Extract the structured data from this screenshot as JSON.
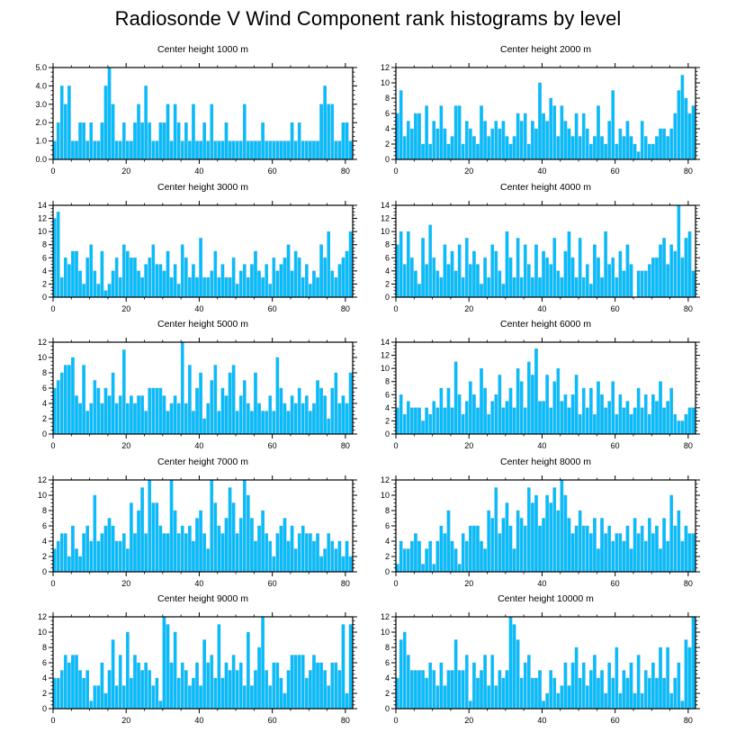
{
  "title": "Radiosonde V Wind Component rank histograms by level",
  "colors": {
    "bar": "#00BFFF",
    "bar_edge": "#4FA8D8",
    "axis": "#000000"
  },
  "chart_data": [
    {
      "type": "bar",
      "title": "Center height 1000 m",
      "xlim": [
        0,
        82
      ],
      "ylim": [
        0,
        5
      ],
      "xticks": [
        0,
        20,
        40,
        60,
        80
      ],
      "yticks": [
        0,
        1,
        2,
        3,
        4,
        5
      ],
      "ytick_labels": [
        "0.0",
        "1.0",
        "2.0",
        "3.0",
        "4.0",
        "5.0"
      ],
      "values": [
        1,
        2,
        4,
        3,
        4,
        1,
        1,
        2,
        2,
        1,
        2,
        1,
        1,
        2,
        4,
        5,
        3,
        1,
        1,
        2,
        1,
        1,
        2,
        3,
        2,
        4,
        2,
        1,
        1,
        2,
        2,
        3,
        1,
        3,
        2,
        1,
        2,
        1,
        3,
        1,
        1,
        2,
        1,
        3,
        1,
        1,
        1,
        2,
        1,
        1,
        1,
        1,
        3,
        1,
        1,
        1,
        1,
        2,
        1,
        1,
        1,
        1,
        1,
        1,
        1,
        2,
        1,
        2,
        1,
        1,
        1,
        1,
        1,
        3,
        4,
        3,
        3,
        1,
        1,
        2,
        2,
        1
      ]
    },
    {
      "type": "bar",
      "title": "Center height 2000 m",
      "xlim": [
        0,
        82
      ],
      "ylim": [
        0,
        12
      ],
      "xticks": [
        0,
        20,
        40,
        60,
        80
      ],
      "yticks": [
        0,
        2,
        4,
        6,
        8,
        10,
        12
      ],
      "ytick_labels": [
        "0",
        "2",
        "4",
        "6",
        "8",
        "10",
        "12"
      ],
      "values": [
        6,
        9,
        3,
        5,
        4,
        6,
        6,
        2,
        7,
        2,
        5,
        4,
        7,
        4,
        2,
        3,
        7,
        7,
        2,
        5,
        4,
        3,
        2,
        7,
        5,
        3,
        4,
        5,
        4,
        5,
        3,
        2,
        3,
        6,
        5,
        6,
        2,
        5,
        4,
        10,
        6,
        5,
        8,
        7,
        3,
        7,
        5,
        4,
        3,
        6,
        3,
        6,
        4,
        2,
        3,
        7,
        3,
        2,
        5,
        9,
        2,
        4,
        3,
        5,
        3,
        2,
        1,
        5,
        3,
        2,
        2,
        3,
        4,
        4,
        3,
        4,
        6,
        9,
        11,
        8,
        6,
        7
      ]
    },
    {
      "type": "bar",
      "title": "Center height 3000 m",
      "xlim": [
        0,
        82
      ],
      "ylim": [
        0,
        14
      ],
      "xticks": [
        0,
        20,
        40,
        60,
        80
      ],
      "yticks": [
        0,
        2,
        4,
        6,
        8,
        10,
        12,
        14
      ],
      "ytick_labels": [
        "0",
        "2",
        "4",
        "6",
        "8",
        "10",
        "12",
        "14"
      ],
      "values": [
        12,
        13,
        3,
        6,
        5,
        7,
        7,
        4,
        2,
        6,
        8,
        4,
        2,
        7,
        1,
        2,
        4,
        6,
        3,
        8,
        7,
        6,
        6,
        4,
        3,
        5,
        6,
        8,
        5,
        5,
        4,
        7,
        3,
        5,
        2,
        8,
        6,
        3,
        5,
        3,
        9,
        3,
        3,
        4,
        7,
        3,
        5,
        3,
        3,
        6,
        2,
        4,
        5,
        3,
        5,
        7,
        4,
        3,
        5,
        2,
        6,
        4,
        5,
        6,
        8,
        4,
        7,
        6,
        3,
        5,
        2,
        4,
        3,
        8,
        6,
        10,
        4,
        3,
        5,
        6,
        7,
        10
      ]
    },
    {
      "type": "bar",
      "title": "Center height 4000 m",
      "xlim": [
        0,
        82
      ],
      "ylim": [
        0,
        14
      ],
      "xticks": [
        0,
        20,
        40,
        60,
        80
      ],
      "yticks": [
        0,
        2,
        4,
        6,
        8,
        10,
        12,
        14
      ],
      "ytick_labels": [
        "0",
        "2",
        "4",
        "6",
        "8",
        "10",
        "12",
        "14"
      ],
      "values": [
        8,
        10,
        5,
        10,
        6,
        4,
        2,
        9,
        5,
        11,
        6,
        4,
        3,
        8,
        5,
        7,
        4,
        8,
        3,
        9,
        5,
        7,
        5,
        2,
        6,
        3,
        8,
        7,
        4,
        2,
        10,
        6,
        3,
        9,
        3,
        8,
        5,
        3,
        8,
        3,
        7,
        6,
        5,
        9,
        4,
        3,
        7,
        10,
        6,
        3,
        9,
        3,
        5,
        2,
        8,
        6,
        3,
        10,
        5,
        6,
        3,
        7,
        4,
        8,
        5,
        0,
        4,
        4,
        4,
        5,
        6,
        6,
        8,
        9,
        5,
        8,
        7,
        14,
        6,
        9,
        10,
        4
      ]
    },
    {
      "type": "bar",
      "title": "Center height 5000 m",
      "xlim": [
        0,
        82
      ],
      "ylim": [
        0,
        12
      ],
      "xticks": [
        0,
        20,
        40,
        60,
        80
      ],
      "yticks": [
        0,
        2,
        4,
        6,
        8,
        10,
        12
      ],
      "ytick_labels": [
        "0",
        "2",
        "4",
        "6",
        "8",
        "10",
        "12"
      ],
      "values": [
        6,
        7,
        8,
        9,
        9,
        10,
        5,
        4,
        9,
        3,
        4,
        7,
        6,
        4,
        6,
        5,
        8,
        4,
        5,
        11,
        4,
        5,
        4,
        5,
        5,
        3,
        6,
        6,
        6,
        6,
        5,
        3,
        4,
        5,
        4,
        12,
        4,
        9,
        3,
        6,
        8,
        2,
        4,
        7,
        9,
        3,
        6,
        5,
        8,
        9,
        3,
        5,
        7,
        4,
        3,
        8,
        4,
        3,
        3,
        5,
        3,
        10,
        6,
        4,
        3,
        5,
        4,
        6,
        4,
        5,
        3,
        4,
        7,
        6,
        5,
        2,
        6,
        8,
        4,
        5,
        4,
        8
      ]
    },
    {
      "type": "bar",
      "title": "Center height 6000 m",
      "xlim": [
        0,
        82
      ],
      "ylim": [
        0,
        14
      ],
      "xticks": [
        0,
        20,
        40,
        60,
        80
      ],
      "yticks": [
        0,
        2,
        4,
        6,
        8,
        10,
        12,
        14
      ],
      "ytick_labels": [
        "0",
        "2",
        "4",
        "6",
        "8",
        "10",
        "12",
        "14"
      ],
      "values": [
        4,
        6,
        3,
        5,
        4,
        4,
        4,
        2,
        4,
        3,
        5,
        4,
        7,
        4,
        7,
        4,
        11,
        6,
        3,
        5,
        8,
        6,
        4,
        10,
        7,
        3,
        5,
        6,
        9,
        4,
        5,
        7,
        4,
        10,
        8,
        4,
        11,
        9,
        13,
        5,
        5,
        9,
        4,
        8,
        10,
        5,
        6,
        4,
        6,
        9,
        3,
        7,
        4,
        7,
        3,
        8,
        6,
        4,
        5,
        8,
        3,
        6,
        4,
        5,
        3,
        4,
        7,
        4,
        6,
        3,
        6,
        5,
        8,
        4,
        5,
        7,
        3,
        2,
        2,
        3,
        4,
        4
      ]
    },
    {
      "type": "bar",
      "title": "Center height 7000 m",
      "xlim": [
        0,
        82
      ],
      "ylim": [
        0,
        12
      ],
      "xticks": [
        0,
        20,
        40,
        60,
        80
      ],
      "yticks": [
        0,
        2,
        4,
        6,
        8,
        10,
        12
      ],
      "ytick_labels": [
        "0",
        "2",
        "4",
        "6",
        "8",
        "10",
        "12"
      ],
      "values": [
        3,
        4,
        5,
        5,
        2,
        6,
        3,
        2,
        5,
        6,
        4,
        10,
        4,
        5,
        6,
        7,
        6,
        4,
        4,
        5,
        3,
        9,
        5,
        8,
        11,
        5,
        12,
        9,
        9,
        6,
        5,
        5,
        12,
        8,
        5,
        6,
        5,
        6,
        4,
        7,
        8,
        5,
        3,
        12,
        9,
        6,
        5,
        7,
        11,
        9,
        5,
        7,
        12,
        10,
        7,
        4,
        6,
        8,
        5,
        4,
        2,
        5,
        6,
        7,
        4,
        6,
        3,
        5,
        6,
        5,
        5,
        4,
        5,
        2,
        3,
        5,
        4,
        3,
        4,
        2,
        4,
        2
      ]
    },
    {
      "type": "bar",
      "title": "Center height 8000 m",
      "xlim": [
        0,
        82
      ],
      "ylim": [
        0,
        12
      ],
      "xticks": [
        0,
        20,
        40,
        60,
        80
      ],
      "yticks": [
        0,
        2,
        4,
        6,
        8,
        10,
        12
      ],
      "ytick_labels": [
        "0",
        "2",
        "4",
        "6",
        "8",
        "10",
        "12"
      ],
      "values": [
        1,
        4,
        3,
        3,
        4,
        5,
        4,
        1,
        3,
        4,
        1,
        4,
        6,
        5,
        8,
        4,
        3,
        1,
        5,
        4,
        6,
        6,
        6,
        4,
        3,
        8,
        7,
        11,
        5,
        7,
        9,
        6,
        3,
        8,
        7,
        6,
        11,
        9,
        10,
        6,
        7,
        10,
        9,
        11,
        8,
        12,
        10,
        7,
        5,
        6,
        8,
        6,
        6,
        5,
        7,
        3,
        7,
        5,
        6,
        4,
        5,
        5,
        4,
        6,
        3,
        7,
        5,
        6,
        4,
        7,
        5,
        6,
        3,
        7,
        4,
        10,
        6,
        8,
        4,
        6,
        5,
        5
      ]
    },
    {
      "type": "bar",
      "title": "Center height 9000 m",
      "xlim": [
        0,
        82
      ],
      "ylim": [
        0,
        12
      ],
      "xticks": [
        0,
        20,
        40,
        60,
        80
      ],
      "yticks": [
        0,
        2,
        4,
        6,
        8,
        10,
        12
      ],
      "ytick_labels": [
        "0",
        "2",
        "4",
        "6",
        "8",
        "10",
        "12"
      ],
      "values": [
        4,
        4,
        5,
        7,
        6,
        7,
        7,
        5,
        4,
        5,
        1,
        3,
        3,
        6,
        2,
        5,
        9,
        3,
        7,
        3,
        10,
        4,
        7,
        6,
        5,
        6,
        5,
        3,
        4,
        1,
        12,
        11,
        6,
        10,
        4,
        6,
        5,
        3,
        4,
        6,
        3,
        9,
        6,
        7,
        4,
        11,
        4,
        6,
        5,
        7,
        5,
        6,
        3,
        10,
        3,
        5,
        8,
        12,
        5,
        3,
        6,
        6,
        4,
        2,
        5,
        7,
        7,
        7,
        7,
        4,
        5,
        7,
        6,
        6,
        5,
        3,
        6,
        6,
        5,
        11,
        2,
        11
      ]
    },
    {
      "type": "bar",
      "title": "Center height 10000 m",
      "xlim": [
        0,
        82
      ],
      "ylim": [
        0,
        12
      ],
      "xticks": [
        0,
        20,
        40,
        60,
        80
      ],
      "yticks": [
        0,
        2,
        4,
        6,
        8,
        10,
        12
      ],
      "ytick_labels": [
        "0",
        "2",
        "4",
        "6",
        "8",
        "10",
        "12"
      ],
      "values": [
        4,
        9,
        10,
        7,
        5,
        5,
        5,
        5,
        4,
        6,
        5,
        3,
        6,
        3,
        5,
        5,
        9,
        5,
        5,
        7,
        1,
        6,
        4,
        5,
        7,
        3,
        7,
        3,
        5,
        4,
        5,
        12,
        11,
        9,
        4,
        6,
        7,
        4,
        4,
        5,
        1,
        2,
        5,
        4,
        2,
        3,
        6,
        3,
        6,
        8,
        4,
        6,
        3,
        5,
        7,
        4,
        5,
        2,
        6,
        4,
        8,
        2,
        5,
        4,
        6,
        2,
        7,
        2,
        5,
        4,
        6,
        4,
        8,
        4,
        8,
        2,
        4,
        6,
        1,
        9,
        8,
        12
      ]
    }
  ]
}
